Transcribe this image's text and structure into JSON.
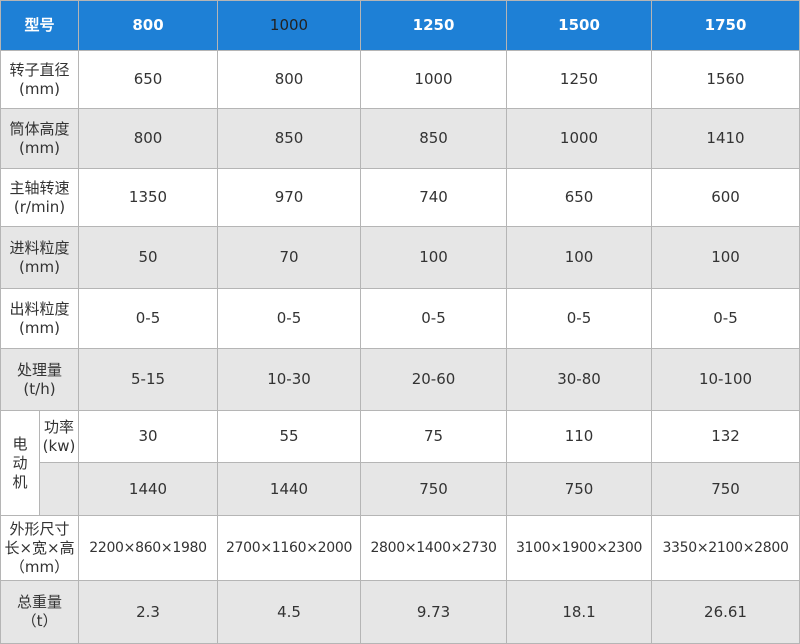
{
  "table": {
    "header": {
      "label": "型号",
      "models": [
        "800",
        "1000",
        "1250",
        "1500",
        "1750"
      ]
    },
    "rows": [
      {
        "label": [
          "转子直径",
          "(mm)"
        ],
        "values": [
          "650",
          "800",
          "1000",
          "1250",
          "1560"
        ]
      },
      {
        "label": [
          "筒体高度",
          "(mm)"
        ],
        "values": [
          "800",
          "850",
          "850",
          "1000",
          "1410"
        ]
      },
      {
        "label": [
          "主轴转速",
          "(r/min)"
        ],
        "values": [
          "1350",
          "970",
          "740",
          "650",
          "600"
        ]
      },
      {
        "label": [
          "进料粒度",
          "(mm)"
        ],
        "values": [
          "50",
          "70",
          "100",
          "100",
          "100"
        ]
      },
      {
        "label": [
          "出料粒度",
          "(mm)"
        ],
        "values": [
          "0-5",
          "0-5",
          "0-5",
          "0-5",
          "0-5"
        ]
      },
      {
        "label": [
          "处理量",
          "(t/h)"
        ],
        "values": [
          "5-15",
          "10-30",
          "20-60",
          "30-80",
          "10-100"
        ]
      }
    ],
    "motor": {
      "label": [
        "电",
        "动",
        "机"
      ],
      "power": {
        "label": [
          "功率",
          "(kw)"
        ],
        "values": [
          "30",
          "55",
          "75",
          "110",
          "132"
        ]
      },
      "speed": {
        "values": [
          "1440",
          "1440",
          "750",
          "750",
          "750"
        ]
      }
    },
    "rows_after": [
      {
        "label": [
          "外形尺寸",
          "长×宽×高",
          "（mm）"
        ],
        "values": [
          "2200×860×1980",
          "2700×1160×2000",
          "2800×1400×2730",
          "3100×1900×2300",
          "3350×2100×2800"
        ]
      },
      {
        "label": [
          "总重量",
          "（t）"
        ],
        "values": [
          "2.3",
          "4.5",
          "9.73",
          "18.1",
          "26.61"
        ]
      }
    ]
  }
}
